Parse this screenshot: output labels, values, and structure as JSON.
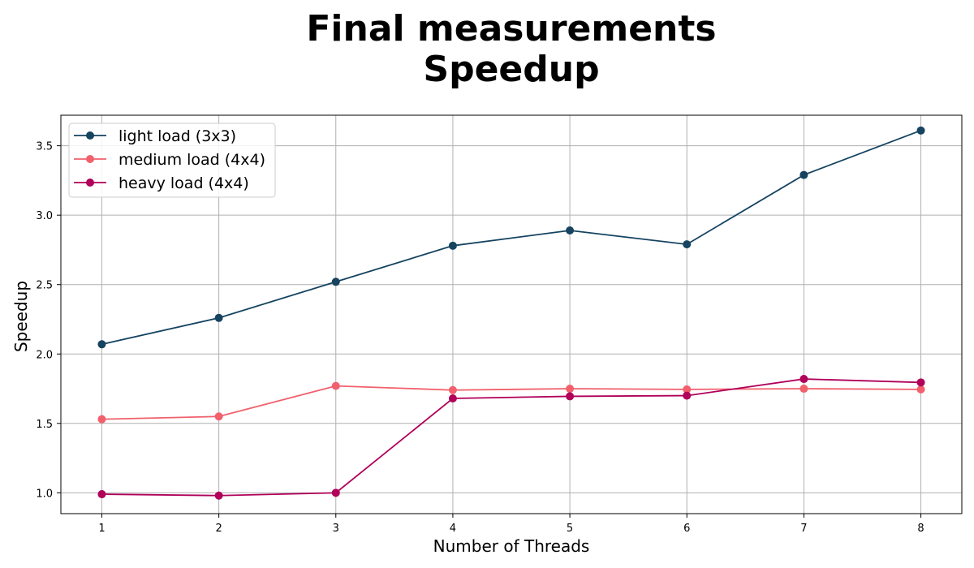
{
  "chart_data": {
    "type": "line",
    "title": "Final measurements",
    "subtitle": "Speedup",
    "xlabel": "Number of Threads",
    "ylabel": "Speedup",
    "x": [
      1,
      2,
      3,
      4,
      5,
      6,
      7,
      8
    ],
    "xticks": [
      "1",
      "2",
      "3",
      "4",
      "5",
      "6",
      "7",
      "8"
    ],
    "yticks": [
      "1.0",
      "1.5",
      "2.0",
      "2.5",
      "3.0",
      "3.5"
    ],
    "xlim": [
      0.65,
      8.35
    ],
    "ylim": [
      0.85,
      3.72
    ],
    "grid": true,
    "legend_position": "top-left",
    "series": [
      {
        "name": "light load (3x3)",
        "color": "#154360",
        "values": [
          2.07,
          2.26,
          2.52,
          2.78,
          2.89,
          2.79,
          3.29,
          3.61
        ]
      },
      {
        "name": "medium load (4x4)",
        "color": "#f1606c",
        "values": [
          1.53,
          1.55,
          1.77,
          1.74,
          1.75,
          1.745,
          1.75,
          1.745
        ]
      },
      {
        "name": "heavy load (4x4)",
        "color": "#b0005a",
        "values": [
          0.99,
          0.98,
          1.0,
          1.68,
          1.695,
          1.7,
          1.82,
          1.795
        ]
      }
    ]
  }
}
